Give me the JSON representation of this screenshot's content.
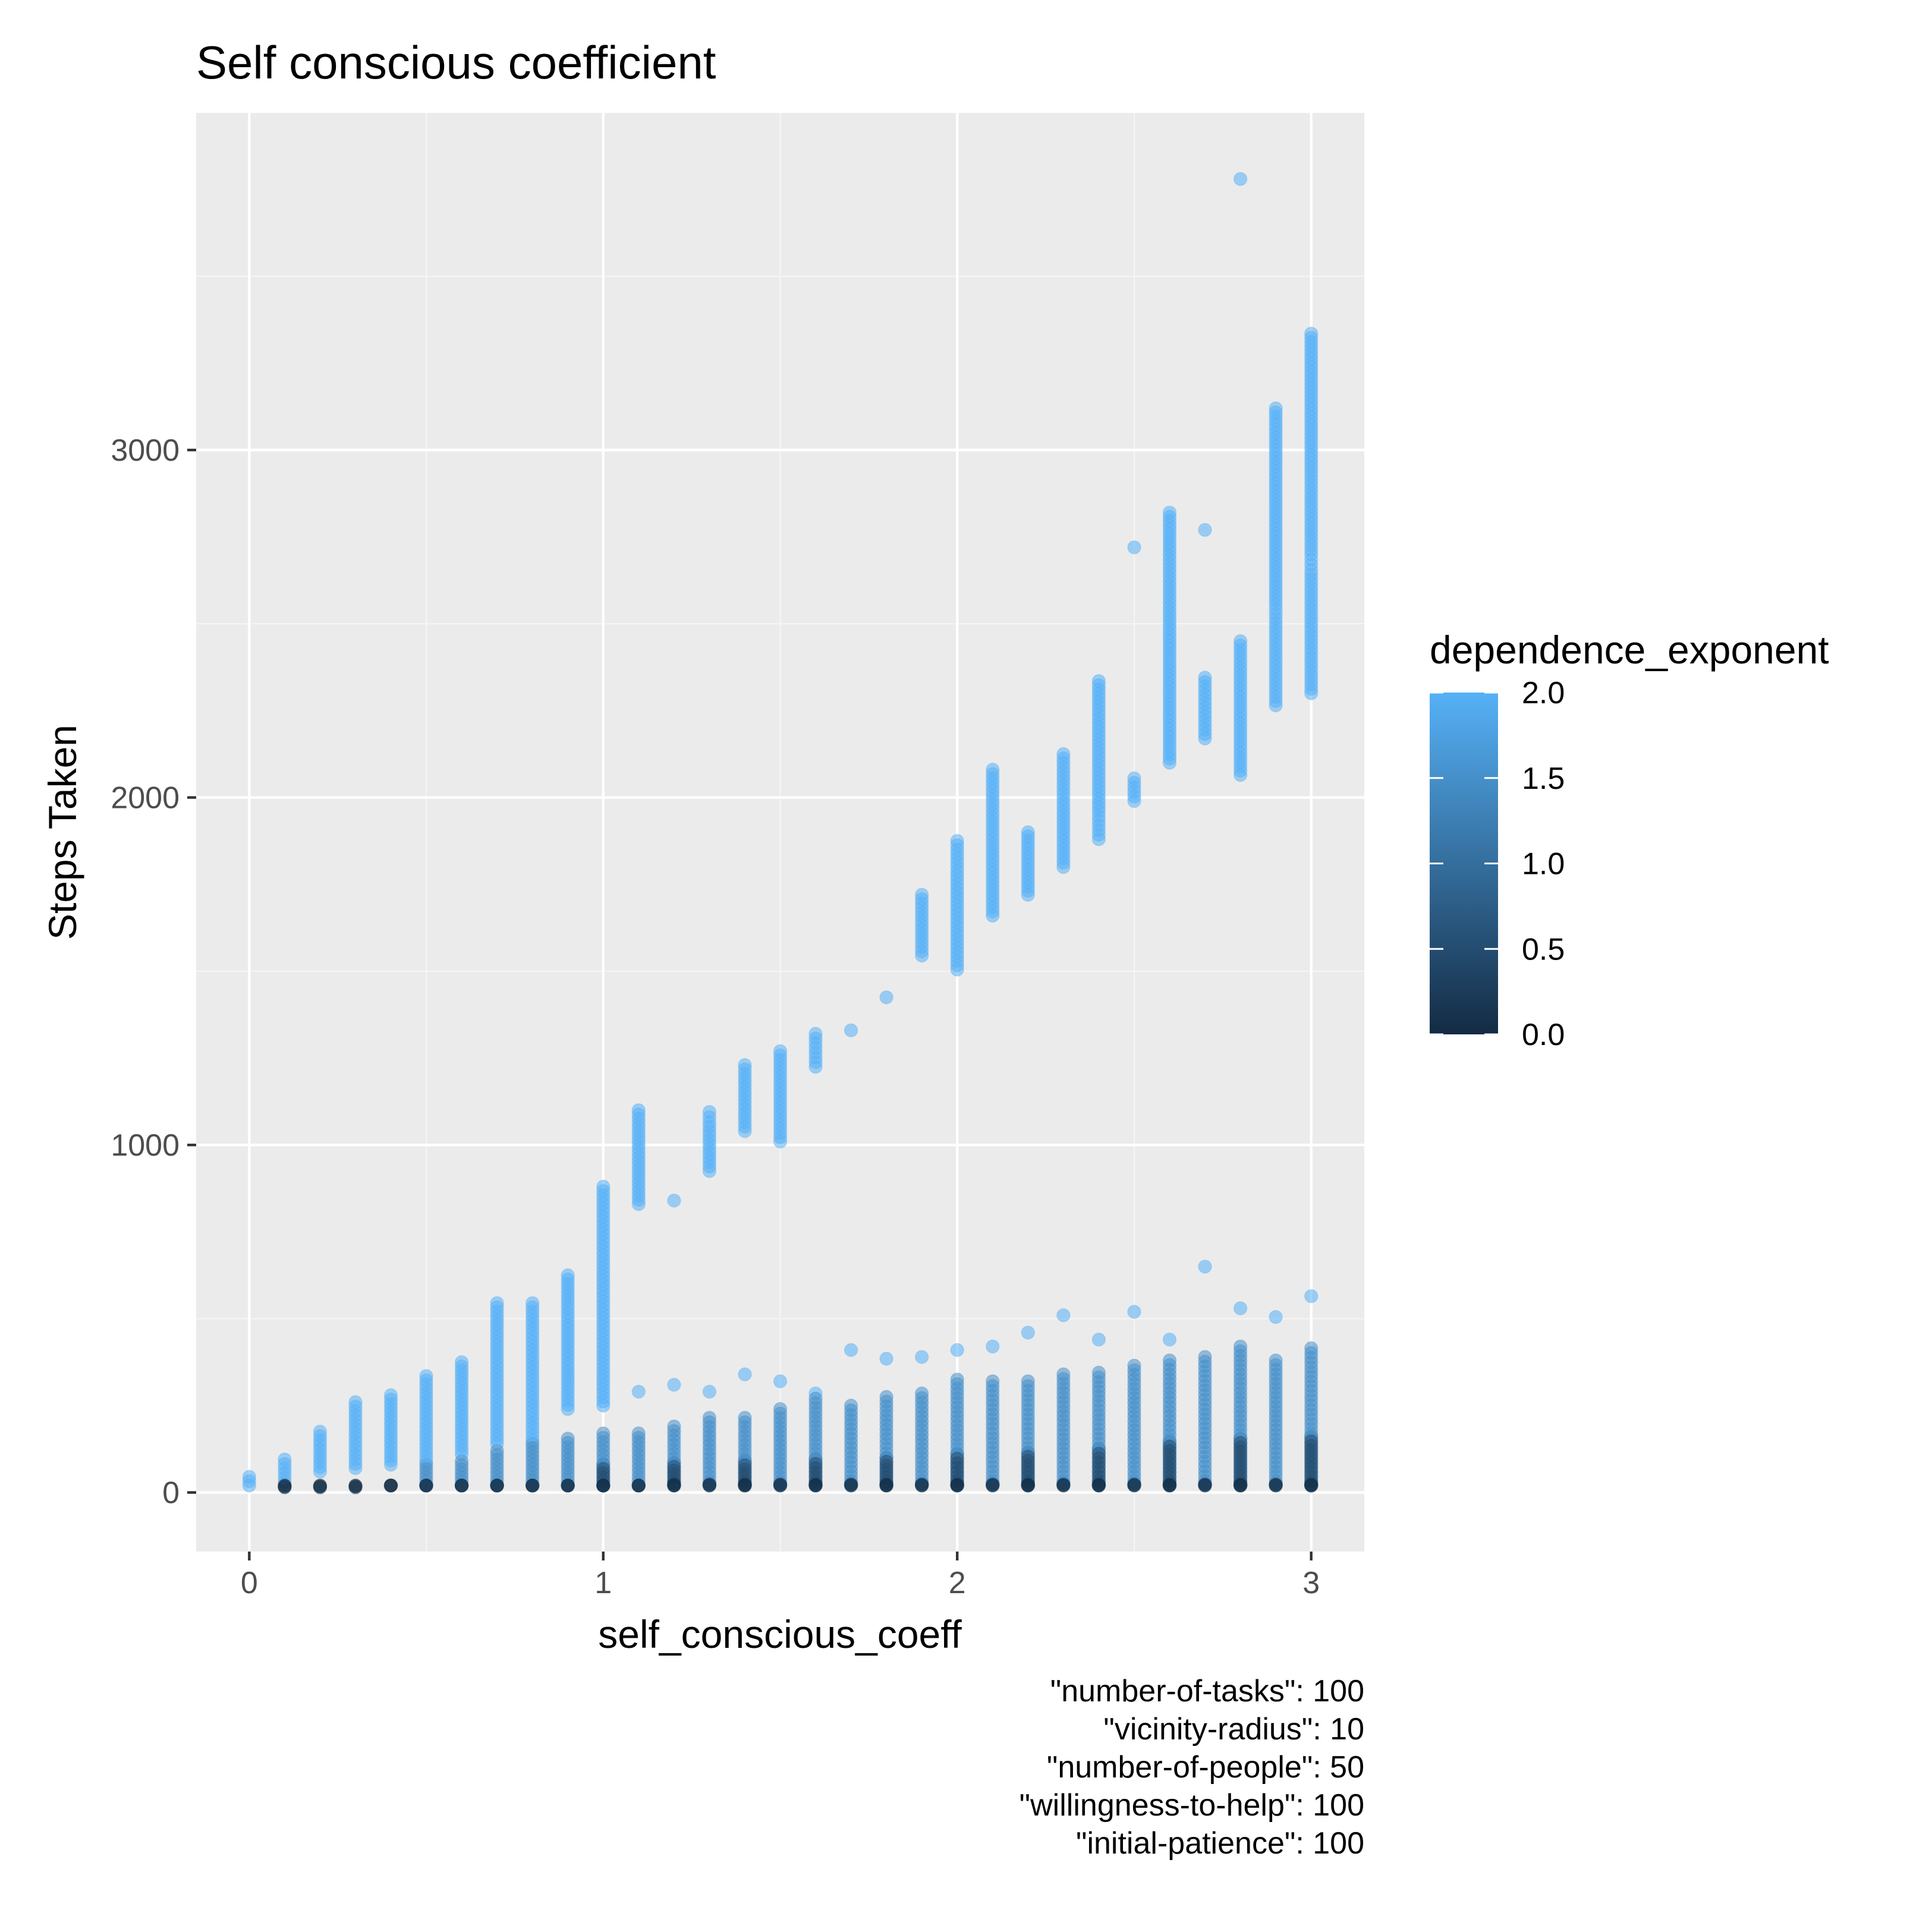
{
  "chart_data": {
    "type": "scatter",
    "title": "Self conscious coefficient",
    "xlabel": "self_conscious_coeff",
    "ylabel": "Steps Taken",
    "xlim": [
      -0.15,
      3.15
    ],
    "ylim": [
      -170,
      3970
    ],
    "x_ticks": [
      0,
      1,
      2,
      3
    ],
    "x_tick_labels": [
      "0",
      "1",
      "2",
      "3"
    ],
    "y_ticks": [
      0,
      1000,
      2000,
      3000
    ],
    "y_tick_labels": [
      "0",
      "1000",
      "2000",
      "3000"
    ],
    "grid": true,
    "legend": {
      "title": "dependence_exponent",
      "placement": "right",
      "type": "colorbar",
      "range": [
        0.0,
        2.0
      ],
      "breaks": [
        0.0,
        0.5,
        1.0,
        1.5,
        2.0
      ],
      "break_labels": [
        "0.0",
        "0.5",
        "1.0",
        "1.5",
        "2.0"
      ],
      "low_color": "#132B43",
      "high_color": "#56B1F7"
    },
    "colors": {
      "panel_background": "#EBEBEB",
      "grid_major": "#FFFFFF",
      "grid_minor": "#F5F5F5"
    },
    "point_opacity": 0.55,
    "series": [
      {
        "dependence_exponent": 2.0,
        "points": [
          [
            0.0,
            45
          ],
          [
            0.0,
            20
          ],
          [
            0.1,
            95
          ],
          [
            0.1,
            30
          ],
          [
            0.2,
            175
          ],
          [
            0.2,
            60
          ],
          [
            0.3,
            260
          ],
          [
            0.3,
            70
          ],
          [
            0.4,
            280
          ],
          [
            0.4,
            80
          ],
          [
            0.5,
            335
          ],
          [
            0.5,
            90
          ],
          [
            0.6,
            375
          ],
          [
            0.6,
            110
          ],
          [
            0.7,
            545
          ],
          [
            0.7,
            140
          ],
          [
            0.8,
            545
          ],
          [
            0.8,
            150
          ],
          [
            0.9,
            625
          ],
          [
            0.9,
            240
          ],
          [
            1.0,
            880
          ],
          [
            1.0,
            670
          ],
          [
            1.0,
            250
          ],
          [
            1.1,
            1100
          ],
          [
            1.1,
            830
          ],
          [
            1.1,
            290
          ],
          [
            1.2,
            840
          ],
          [
            1.2,
            310
          ],
          [
            1.3,
            1095
          ],
          [
            1.3,
            1065
          ],
          [
            1.3,
            925
          ],
          [
            1.3,
            290
          ],
          [
            1.4,
            1230
          ],
          [
            1.4,
            1040
          ],
          [
            1.4,
            340
          ],
          [
            1.5,
            1270
          ],
          [
            1.5,
            1010
          ],
          [
            1.5,
            320
          ],
          [
            1.6,
            1320
          ],
          [
            1.6,
            1225
          ],
          [
            1.6,
            285
          ],
          [
            1.7,
            1330
          ],
          [
            1.7,
            410
          ],
          [
            1.8,
            1425
          ],
          [
            1.8,
            385
          ],
          [
            1.9,
            1720
          ],
          [
            1.9,
            1545
          ],
          [
            1.9,
            390
          ],
          [
            2.0,
            1875
          ],
          [
            2.0,
            1750
          ],
          [
            2.0,
            1505
          ],
          [
            2.0,
            410
          ],
          [
            2.1,
            2080
          ],
          [
            2.1,
            1855
          ],
          [
            2.1,
            1660
          ],
          [
            2.1,
            420
          ],
          [
            2.2,
            1900
          ],
          [
            2.2,
            1720
          ],
          [
            2.2,
            460
          ],
          [
            2.3,
            2125
          ],
          [
            2.3,
            1985
          ],
          [
            2.3,
            1800
          ],
          [
            2.3,
            510
          ],
          [
            2.4,
            2335
          ],
          [
            2.4,
            1960
          ],
          [
            2.4,
            1880
          ],
          [
            2.4,
            440
          ],
          [
            2.5,
            2720
          ],
          [
            2.5,
            2055
          ],
          [
            2.5,
            1990
          ],
          [
            2.5,
            520
          ],
          [
            2.6,
            2820
          ],
          [
            2.6,
            2710
          ],
          [
            2.6,
            2510
          ],
          [
            2.6,
            2100
          ],
          [
            2.6,
            440
          ],
          [
            2.7,
            2770
          ],
          [
            2.7,
            2345
          ],
          [
            2.7,
            2170
          ],
          [
            2.7,
            650
          ],
          [
            2.8,
            3780
          ],
          [
            2.8,
            2450
          ],
          [
            2.8,
            2300
          ],
          [
            2.8,
            2065
          ],
          [
            2.8,
            530
          ],
          [
            2.9,
            3120
          ],
          [
            2.9,
            2760
          ],
          [
            2.9,
            2555
          ],
          [
            2.9,
            2515
          ],
          [
            2.9,
            2265
          ],
          [
            2.9,
            505
          ],
          [
            3.0,
            3335
          ],
          [
            3.0,
            3070
          ],
          [
            3.0,
            2950
          ],
          [
            3.0,
            2700
          ],
          [
            3.0,
            2655
          ],
          [
            3.0,
            2440
          ],
          [
            3.0,
            2300
          ],
          [
            3.0,
            565
          ]
        ]
      },
      {
        "dependence_exponent": 1.5,
        "points": [
          [
            0.5,
            80
          ],
          [
            0.6,
            90
          ],
          [
            0.7,
            120
          ],
          [
            0.8,
            140
          ],
          [
            0.9,
            155
          ],
          [
            1.0,
            170
          ],
          [
            1.1,
            170
          ],
          [
            1.2,
            190
          ],
          [
            1.3,
            215
          ],
          [
            1.4,
            215
          ],
          [
            1.5,
            240
          ],
          [
            1.6,
            270
          ],
          [
            1.7,
            250
          ],
          [
            1.8,
            275
          ],
          [
            1.9,
            285
          ],
          [
            2.0,
            325
          ],
          [
            2.1,
            320
          ],
          [
            2.2,
            320
          ],
          [
            2.3,
            340
          ],
          [
            2.4,
            345
          ],
          [
            2.5,
            365
          ],
          [
            2.6,
            380
          ],
          [
            2.7,
            390
          ],
          [
            2.8,
            420
          ],
          [
            2.9,
            380
          ],
          [
            3.0,
            415
          ]
        ]
      },
      {
        "dependence_exponent": 0.5,
        "points": [
          [
            1.0,
            80
          ],
          [
            1.2,
            85
          ],
          [
            1.4,
            90
          ],
          [
            1.6,
            95
          ],
          [
            1.8,
            100
          ],
          [
            2.0,
            110
          ],
          [
            2.2,
            115
          ],
          [
            2.4,
            125
          ],
          [
            2.6,
            145
          ],
          [
            2.8,
            155
          ],
          [
            3.0,
            160
          ]
        ]
      },
      {
        "dependence_exponent": 0.0,
        "points": [
          [
            0.1,
            15
          ],
          [
            0.2,
            15
          ],
          [
            0.3,
            15
          ],
          [
            0.4,
            20
          ],
          [
            0.5,
            20
          ],
          [
            0.6,
            20
          ],
          [
            0.7,
            20
          ],
          [
            0.8,
            20
          ],
          [
            0.9,
            20
          ],
          [
            1.0,
            20
          ],
          [
            1.1,
            20
          ],
          [
            1.2,
            25
          ],
          [
            1.3,
            25
          ],
          [
            1.4,
            25
          ],
          [
            1.5,
            25
          ],
          [
            1.6,
            25
          ],
          [
            1.7,
            25
          ],
          [
            1.8,
            25
          ],
          [
            1.9,
            25
          ],
          [
            2.0,
            25
          ],
          [
            2.1,
            25
          ],
          [
            2.2,
            25
          ],
          [
            2.3,
            25
          ],
          [
            2.4,
            25
          ],
          [
            2.5,
            25
          ],
          [
            2.6,
            25
          ],
          [
            2.7,
            25
          ],
          [
            2.8,
            25
          ],
          [
            2.9,
            25
          ],
          [
            3.0,
            25
          ]
        ]
      }
    ],
    "caption_lines": [
      "\"number-of-tasks\": 100",
      "\"vicinity-radius\": 10",
      "\"number-of-people\": 50",
      "\"willingness-to-help\": 100",
      "\"initial-patience\": 100"
    ]
  }
}
